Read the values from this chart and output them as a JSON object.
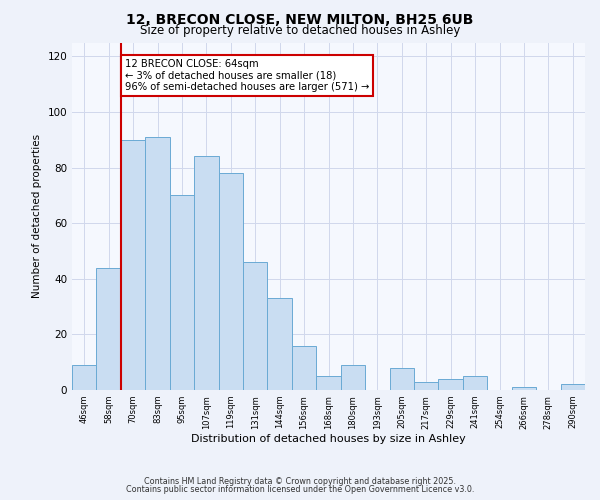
{
  "title": "12, BRECON CLOSE, NEW MILTON, BH25 6UB",
  "subtitle": "Size of property relative to detached houses in Ashley",
  "xlabel": "Distribution of detached houses by size in Ashley",
  "ylabel": "Number of detached properties",
  "bar_labels": [
    "46sqm",
    "58sqm",
    "70sqm",
    "83sqm",
    "95sqm",
    "107sqm",
    "119sqm",
    "131sqm",
    "144sqm",
    "156sqm",
    "168sqm",
    "180sqm",
    "193sqm",
    "205sqm",
    "217sqm",
    "229sqm",
    "241sqm",
    "254sqm",
    "266sqm",
    "278sqm",
    "290sqm"
  ],
  "bar_values": [
    9,
    44,
    90,
    91,
    70,
    84,
    78,
    46,
    33,
    16,
    5,
    9,
    0,
    8,
    3,
    4,
    5,
    0,
    1,
    0,
    2
  ],
  "bar_color": "#c9ddf2",
  "bar_edge_color": "#6aaad4",
  "vline_x": 1.5,
  "vline_color": "#cc0000",
  "annotation_text": "12 BRECON CLOSE: 64sqm\n← 3% of detached houses are smaller (18)\n96% of semi-detached houses are larger (571) →",
  "annotation_box_color": "#ffffff",
  "annotation_box_edge": "#cc0000",
  "ylim": [
    0,
    125
  ],
  "yticks": [
    0,
    20,
    40,
    60,
    80,
    100,
    120
  ],
  "footer1": "Contains HM Land Registry data © Crown copyright and database right 2025.",
  "footer2": "Contains public sector information licensed under the Open Government Licence v3.0.",
  "bg_color": "#eef2fa",
  "plot_bg_color": "#f5f8fe",
  "grid_color": "#d0d8ec"
}
